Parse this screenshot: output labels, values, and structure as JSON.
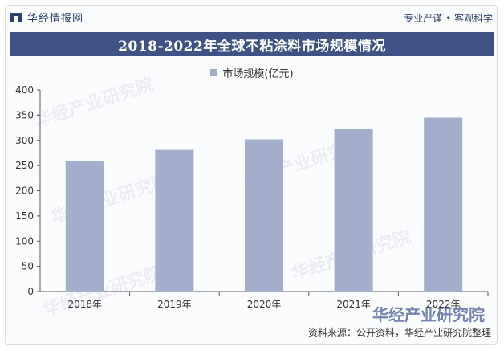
{
  "header": {
    "brand": "华经情报网",
    "slogan": "专业严谨 • 客观科学"
  },
  "title": "2018-2022年全球不粘涂料市场规模情况",
  "footer": {
    "source": "资料来源：公开资料，华经产业研究院整理"
  },
  "watermark": {
    "text": "华经产业研究院",
    "corner": "华经产业研究院"
  },
  "chart_data": {
    "type": "bar",
    "categories": [
      "2018年",
      "2019年",
      "2020年",
      "2021年",
      "2022年"
    ],
    "series": [
      {
        "name": "市场规模(亿元)",
        "values": [
          259,
          281,
          302,
          322,
          345
        ]
      }
    ],
    "ylim": [
      0,
      400
    ],
    "yticks": [
      0,
      50,
      100,
      150,
      200,
      250,
      300,
      350,
      400
    ],
    "grid": false,
    "legend": "top-center",
    "colors": {
      "bar": "#a2aecb",
      "title_bg": "#3e5284",
      "brand": "#2d3f6b"
    }
  }
}
